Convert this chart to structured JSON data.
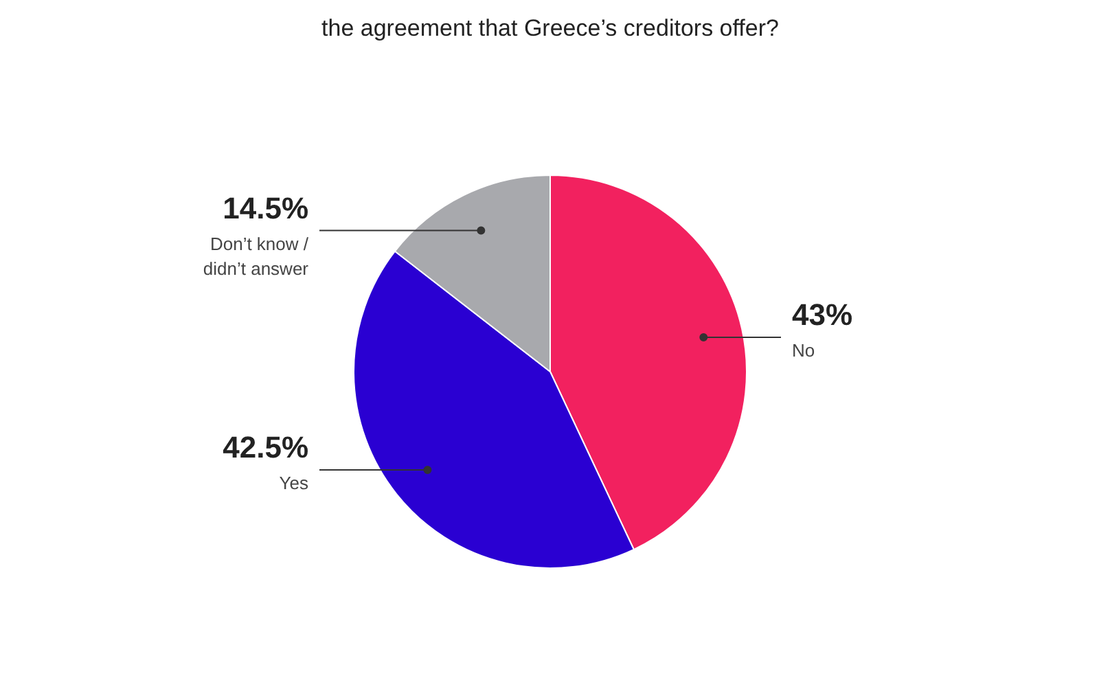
{
  "chart_data": {
    "type": "pie",
    "title": "the agreement that Greece’s creditors offer?",
    "categories": [
      "No",
      "Yes",
      "Don’t know / didn’t answer"
    ],
    "values": [
      43,
      42.5,
      14.5
    ],
    "colors": [
      "#f2215f",
      "#2a00d2",
      "#a8a9ad"
    ],
    "value_labels": [
      "43%",
      "42.5%",
      "14.5%"
    ]
  }
}
